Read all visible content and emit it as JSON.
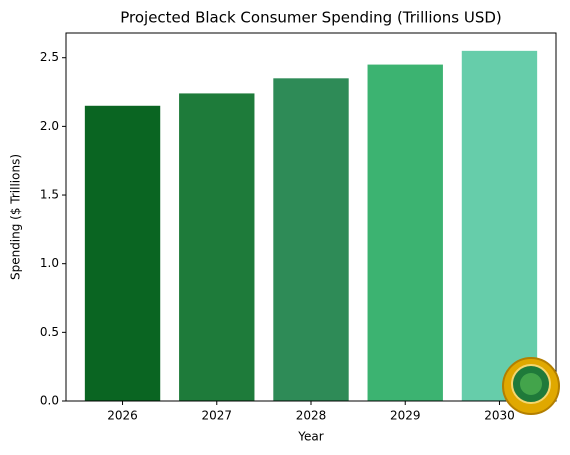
{
  "chart_data": {
    "type": "bar",
    "title": "Projected Black Consumer Spending (Trillions USD)",
    "x_label": "Year",
    "y_label": "Spending ($ Trillions)",
    "categories": [
      "2026",
      "2027",
      "2028",
      "2029",
      "2030"
    ],
    "values": [
      2.15,
      2.24,
      2.35,
      2.45,
      2.55
    ],
    "colors": [
      "#0a6522",
      "#1e7b3a",
      "#2e8b57",
      "#3cb371",
      "#66cdaa"
    ],
    "ylim": [
      0,
      2.68
    ],
    "yticks": [
      {
        "value": 0,
        "label": "0.0"
      },
      0.5,
      {
        "value": 1,
        "label": "1.0"
      },
      1.5,
      {
        "value": 2,
        "label": "2.0"
      },
      2.5
    ],
    "grid": false
  }
}
